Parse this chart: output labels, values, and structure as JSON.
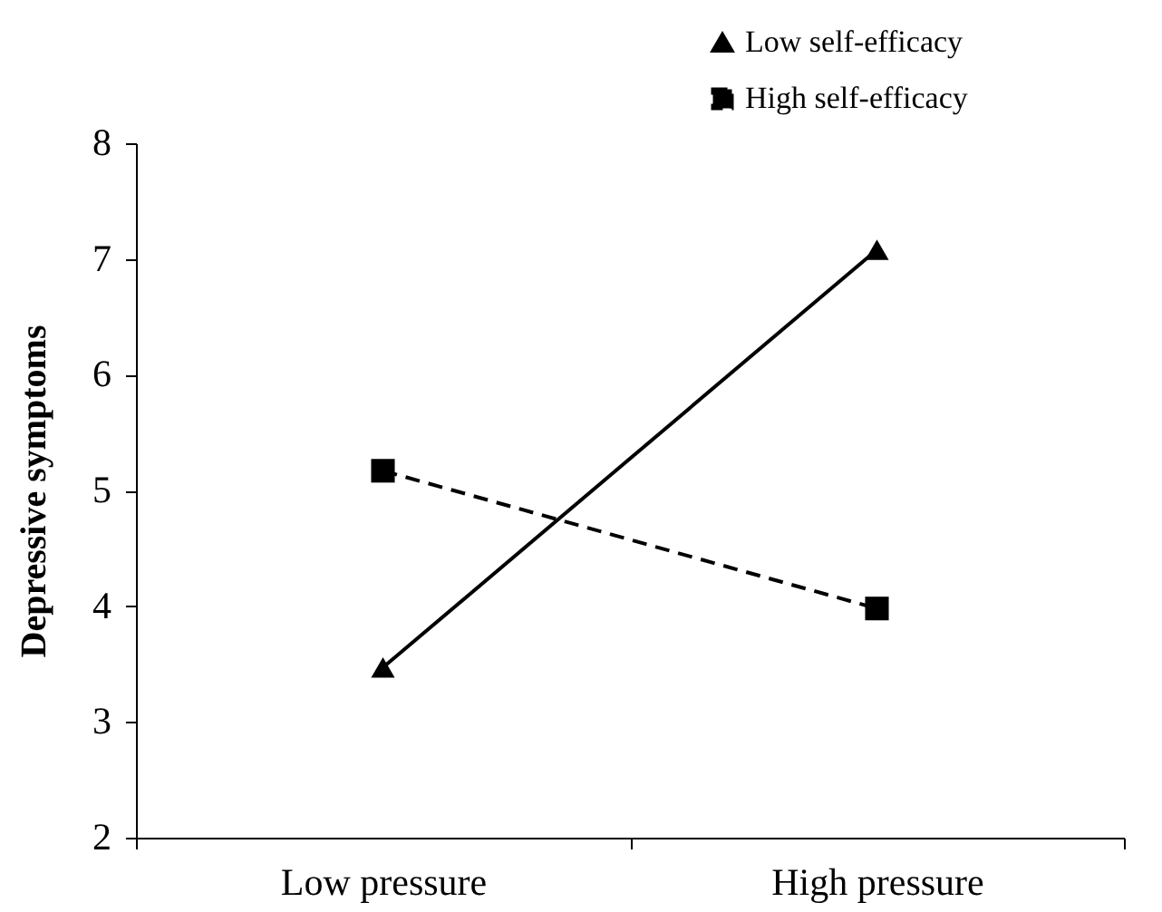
{
  "chart_data": {
    "type": "line",
    "ylabel": "Depressive symptoms",
    "categories": [
      "Low pressure",
      "High pressure"
    ],
    "series": [
      {
        "name": "Low self-efficacy",
        "color": "#000000",
        "values": [
          3.47,
          7.08
        ],
        "marker": "triangle",
        "line_style": "solid"
      },
      {
        "name": "High self-efficacy",
        "color": "#000000",
        "values": [
          5.17,
          3.98
        ],
        "marker": "square",
        "line_style": "dashed"
      }
    ],
    "ylim": [
      2,
      8
    ],
    "yticks": [
      2,
      3,
      4,
      5,
      6,
      7,
      8
    ],
    "grid": false,
    "legend": "top right"
  }
}
